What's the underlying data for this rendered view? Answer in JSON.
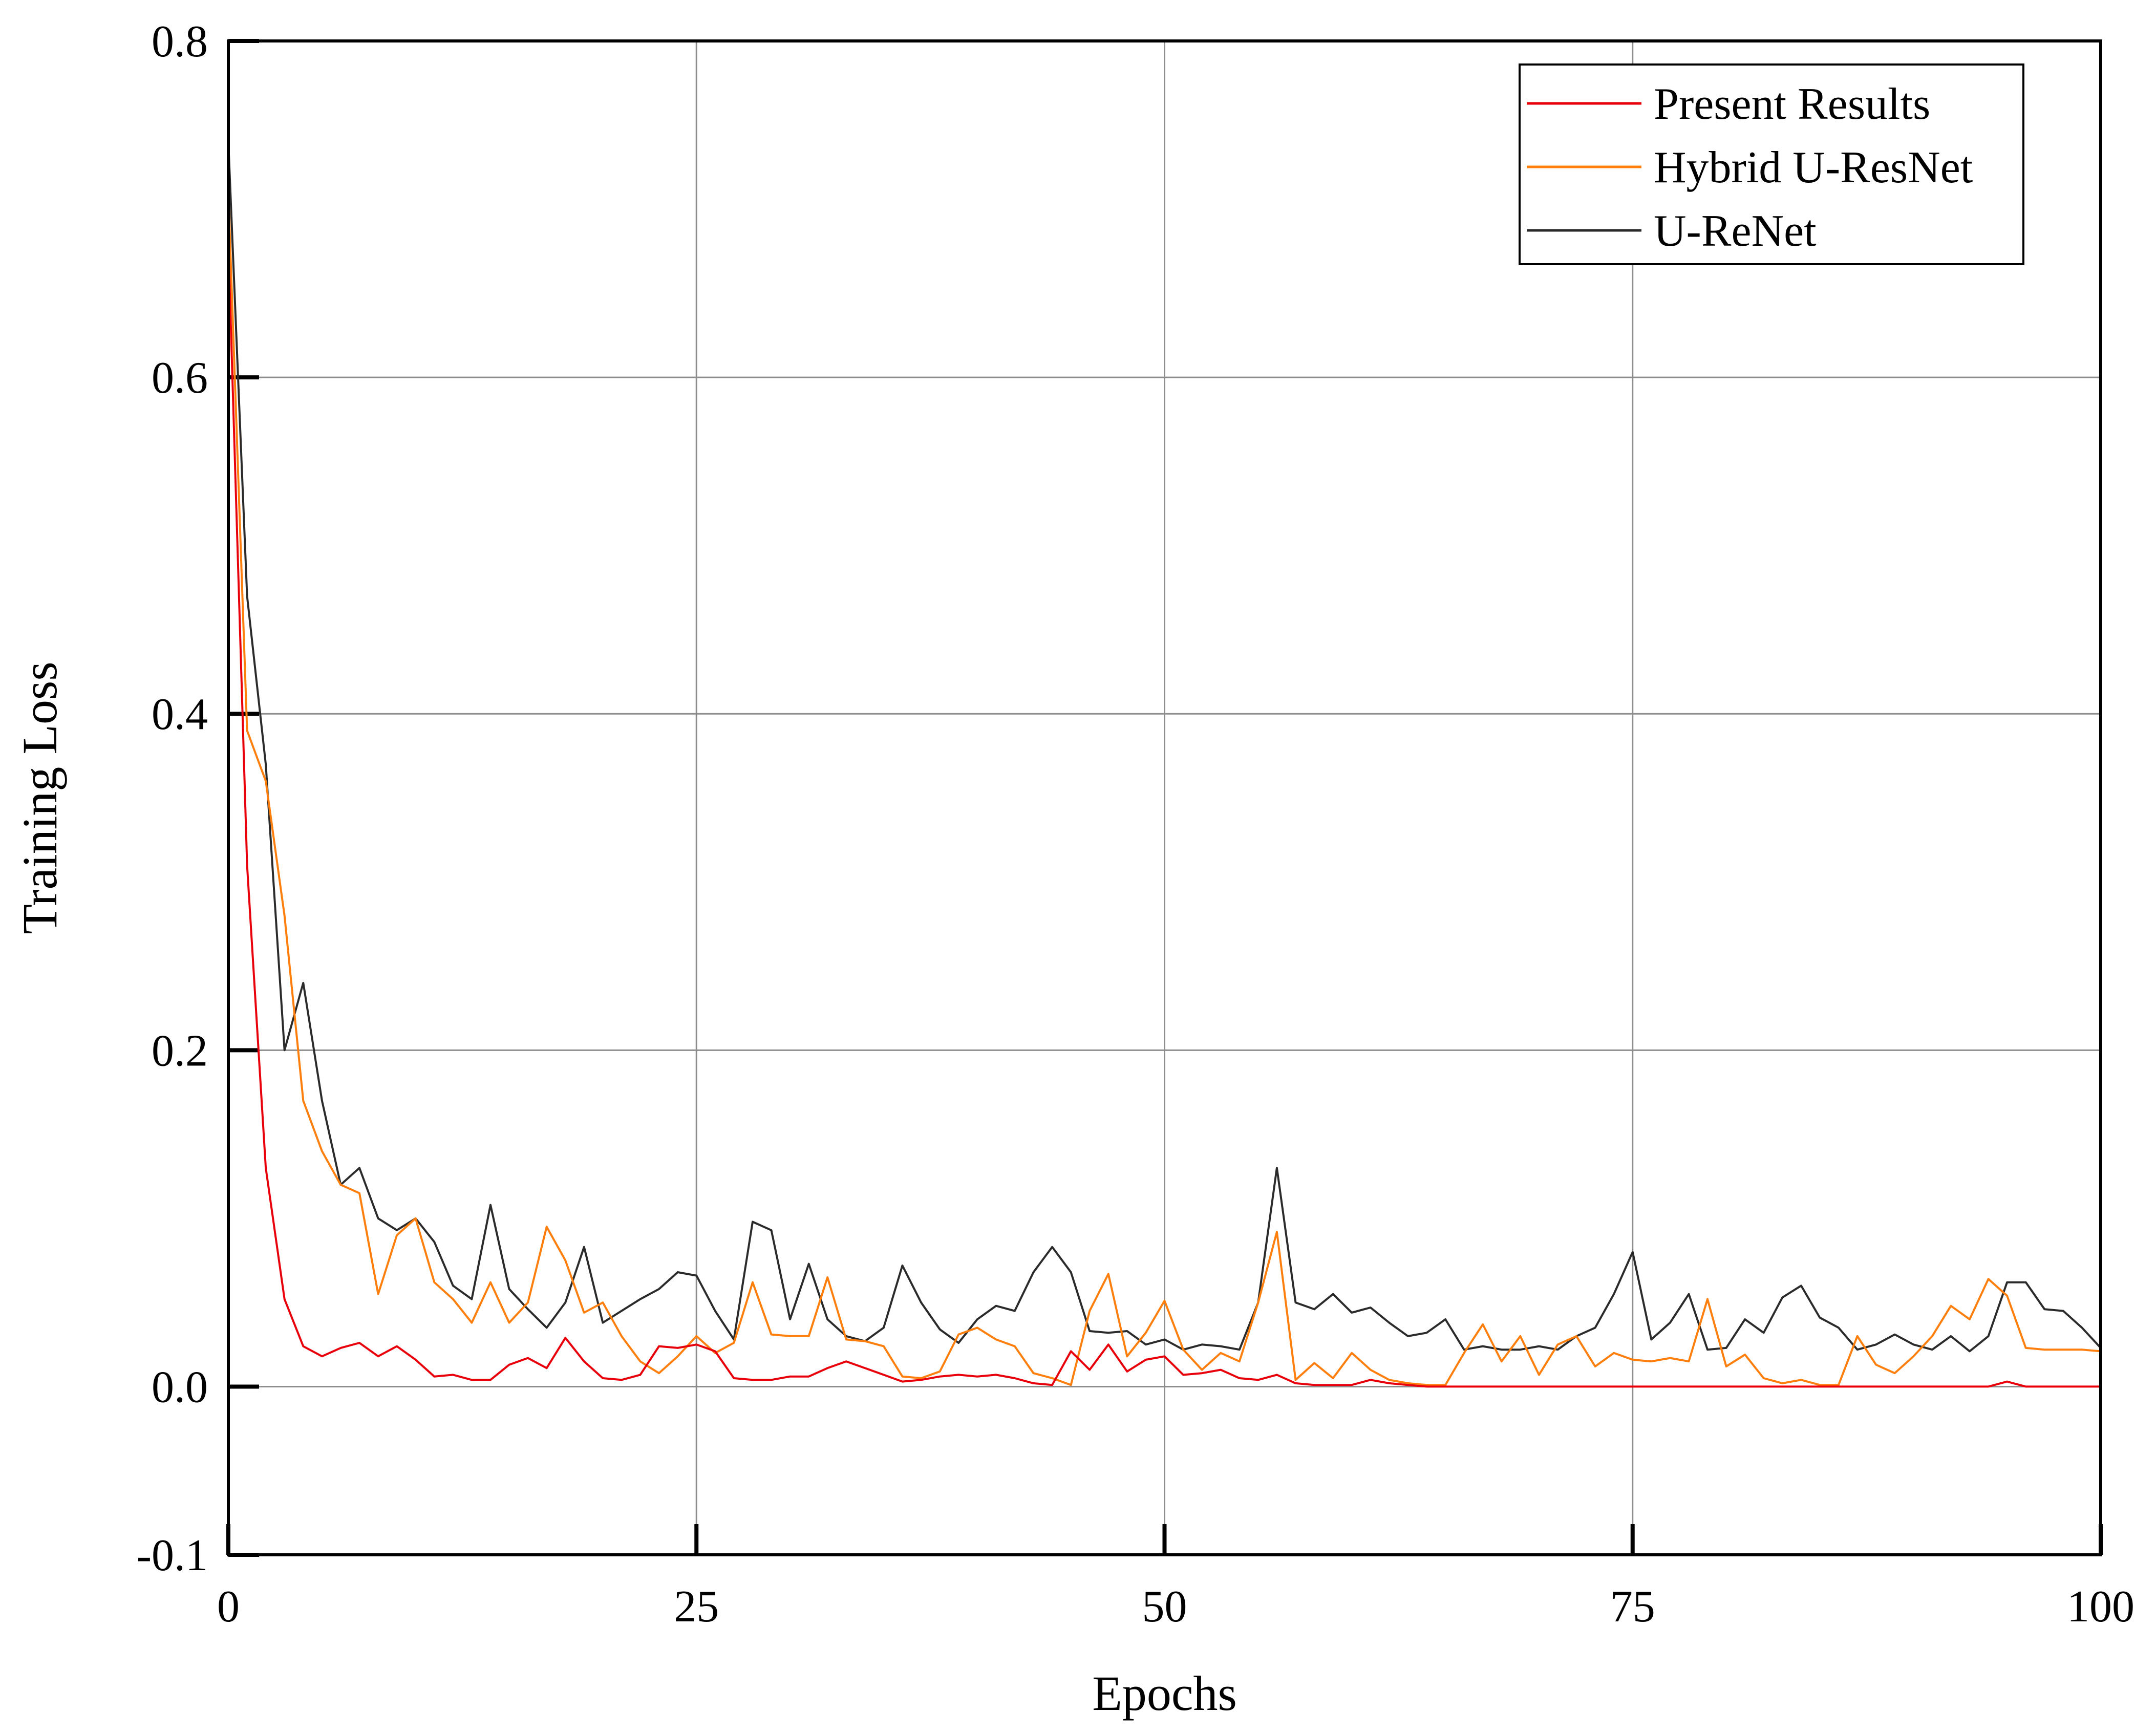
{
  "chart_data": {
    "type": "line",
    "title": "",
    "xlabel": "Epochs",
    "ylabel": "Training Loss",
    "xlim": [
      0,
      100
    ],
    "ylim": [
      -0.1,
      0.8
    ],
    "xticks": [
      0,
      25,
      50,
      75,
      100
    ],
    "xtick_labels": [
      "0",
      "25",
      "50",
      "75",
      "100"
    ],
    "yticks": [
      -0.1,
      0.0,
      0.2,
      0.4,
      0.6,
      0.8
    ],
    "ytick_labels": [
      "-0.1",
      "0.0",
      "0.2",
      "0.4",
      "0.6",
      "0.8"
    ],
    "grid": true,
    "legend_position": "top-right",
    "series": [
      {
        "name": "Present Results",
        "color": "#e8000b",
        "x": [
          0,
          1,
          2,
          3,
          4,
          5,
          6,
          7,
          8,
          9,
          10,
          11,
          12,
          13,
          14,
          15,
          16,
          17,
          18,
          19,
          20,
          21,
          22,
          23,
          24,
          25,
          26,
          27,
          28,
          29,
          30,
          31,
          32,
          33,
          34,
          35,
          36,
          37,
          38,
          39,
          40,
          41,
          42,
          43,
          44,
          45,
          46,
          47,
          48,
          49,
          50,
          51,
          52,
          53,
          54,
          55,
          56,
          57,
          58,
          59,
          60,
          61,
          62,
          63,
          64,
          65,
          66,
          67,
          68,
          69,
          70,
          71,
          72,
          73,
          74,
          75,
          76,
          77,
          78,
          79,
          80,
          81,
          82,
          83,
          84,
          85,
          86,
          87,
          88,
          89,
          90,
          91,
          92,
          93,
          94,
          95,
          96,
          97,
          98,
          99,
          100
        ],
        "y": [
          0.68,
          0.31,
          0.13,
          0.052,
          0.024,
          0.018,
          0.023,
          0.026,
          0.018,
          0.024,
          0.016,
          0.006,
          0.007,
          0.004,
          0.004,
          0.013,
          0.017,
          0.011,
          0.029,
          0.015,
          0.005,
          0.004,
          0.007,
          0.024,
          0.023,
          0.025,
          0.021,
          0.005,
          0.004,
          0.004,
          0.006,
          0.006,
          0.011,
          0.015,
          0.011,
          0.007,
          0.003,
          0.004,
          0.006,
          0.007,
          0.006,
          0.007,
          0.005,
          0.002,
          0.001,
          0.021,
          0.01,
          0.025,
          0.009,
          0.016,
          0.018,
          0.007,
          0.008,
          0.01,
          0.005,
          0.004,
          0.007,
          0.002,
          0.001,
          0.001,
          0.001,
          0.004,
          0.002,
          0.001,
          0.0,
          0.0,
          0.0,
          0.0,
          0.0,
          0.0,
          0.0,
          0.0,
          0.0,
          0.0,
          0.0,
          0.0,
          0.0,
          0.0,
          0.0,
          0.0,
          0.0,
          0.0,
          0.0,
          0.0,
          0.0,
          0.0,
          0.0,
          0.0,
          0.0,
          0.0,
          0.0,
          0.0,
          0.0,
          0.0,
          0.0,
          0.003,
          0.0,
          0.0,
          0.0,
          0.0,
          0.0
        ]
      },
      {
        "name": "Hybrid U-ResNet",
        "color": "#ff7f0e",
        "x": [
          0,
          1,
          2,
          3,
          4,
          5,
          6,
          7,
          8,
          9,
          10,
          11,
          12,
          13,
          14,
          15,
          16,
          17,
          18,
          19,
          20,
          21,
          22,
          23,
          24,
          25,
          26,
          27,
          28,
          29,
          30,
          31,
          32,
          33,
          34,
          35,
          36,
          37,
          38,
          39,
          40,
          41,
          42,
          43,
          44,
          45,
          46,
          47,
          48,
          49,
          50,
          51,
          52,
          53,
          54,
          55,
          56,
          57,
          58,
          59,
          60,
          61,
          62,
          63,
          64,
          65,
          66,
          67,
          68,
          69,
          70,
          71,
          72,
          73,
          74,
          75,
          76,
          77,
          78,
          79,
          80,
          81,
          82,
          83,
          84,
          85,
          86,
          87,
          88,
          89,
          90,
          91,
          92,
          93,
          94,
          95,
          96,
          97,
          98,
          99,
          100
        ],
        "y": [
          0.71,
          0.39,
          0.36,
          0.28,
          0.17,
          0.14,
          0.12,
          0.115,
          0.055,
          0.09,
          0.1,
          0.062,
          0.052,
          0.038,
          0.062,
          0.038,
          0.05,
          0.095,
          0.075,
          0.044,
          0.05,
          0.03,
          0.015,
          0.008,
          0.018,
          0.03,
          0.02,
          0.026,
          0.062,
          0.031,
          0.03,
          0.03,
          0.065,
          0.028,
          0.027,
          0.024,
          0.006,
          0.005,
          0.009,
          0.031,
          0.035,
          0.028,
          0.024,
          0.008,
          0.005,
          0.001,
          0.045,
          0.067,
          0.018,
          0.032,
          0.051,
          0.022,
          0.01,
          0.02,
          0.015,
          0.05,
          0.092,
          0.004,
          0.014,
          0.005,
          0.02,
          0.01,
          0.004,
          0.002,
          0.001,
          0.001,
          0.02,
          0.037,
          0.015,
          0.03,
          0.007,
          0.025,
          0.03,
          0.012,
          0.02,
          0.016,
          0.015,
          0.017,
          0.015,
          0.052,
          0.012,
          0.019,
          0.005,
          0.002,
          0.004,
          0.001,
          0.001,
          0.03,
          0.013,
          0.008,
          0.018,
          0.03,
          0.048,
          0.04,
          0.064,
          0.054,
          0.023,
          0.022,
          0.022,
          0.022,
          0.021
        ]
      },
      {
        "name": "U-ReNet",
        "color": "#2b2b2b",
        "x": [
          0,
          1,
          2,
          3,
          4,
          5,
          6,
          7,
          8,
          9,
          10,
          11,
          12,
          13,
          14,
          15,
          16,
          17,
          18,
          19,
          20,
          21,
          22,
          23,
          24,
          25,
          26,
          27,
          28,
          29,
          30,
          31,
          32,
          33,
          34,
          35,
          36,
          37,
          38,
          39,
          40,
          41,
          42,
          43,
          44,
          45,
          46,
          47,
          48,
          49,
          50,
          51,
          52,
          53,
          54,
          55,
          56,
          57,
          58,
          59,
          60,
          61,
          62,
          63,
          64,
          65,
          66,
          67,
          68,
          69,
          70,
          71,
          72,
          73,
          74,
          75,
          76,
          77,
          78,
          79,
          80,
          81,
          82,
          83,
          84,
          85,
          86,
          87,
          88,
          89,
          90,
          91,
          92,
          93,
          94,
          95,
          96,
          97,
          98,
          99,
          100
        ],
        "y": [
          0.74,
          0.47,
          0.37,
          0.2,
          0.24,
          0.17,
          0.12,
          0.13,
          0.1,
          0.093,
          0.1,
          0.086,
          0.06,
          0.052,
          0.108,
          0.058,
          0.046,
          0.035,
          0.05,
          0.083,
          0.038,
          0.045,
          0.052,
          0.058,
          0.068,
          0.066,
          0.045,
          0.028,
          0.098,
          0.093,
          0.04,
          0.073,
          0.04,
          0.03,
          0.027,
          0.035,
          0.072,
          0.05,
          0.034,
          0.026,
          0.04,
          0.048,
          0.045,
          0.068,
          0.083,
          0.068,
          0.033,
          0.032,
          0.033,
          0.025,
          0.028,
          0.022,
          0.025,
          0.024,
          0.022,
          0.05,
          0.13,
          0.05,
          0.046,
          0.055,
          0.044,
          0.047,
          0.038,
          0.03,
          0.032,
          0.04,
          0.022,
          0.024,
          0.022,
          0.022,
          0.024,
          0.022,
          0.03,
          0.035,
          0.055,
          0.08,
          0.028,
          0.038,
          0.055,
          0.022,
          0.023,
          0.04,
          0.032,
          0.053,
          0.06,
          0.041,
          0.035,
          0.022,
          0.025,
          0.031,
          0.025,
          0.022,
          0.03,
          0.021,
          0.03,
          0.062,
          0.062,
          0.046,
          0.045,
          0.035,
          0.023
        ]
      }
    ]
  }
}
